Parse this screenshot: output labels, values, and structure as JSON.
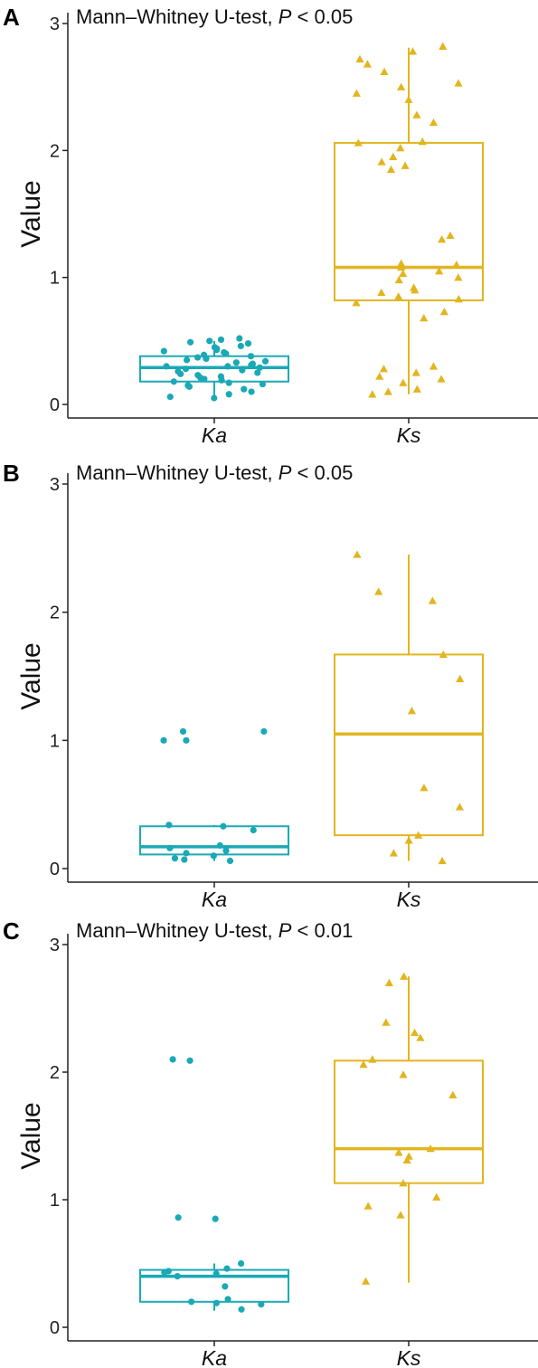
{
  "colors": {
    "Ka": "#1aa9b5",
    "Ks": "#e2b51f",
    "axis": "#222222"
  },
  "chart_data": [
    {
      "panel": "A",
      "type": "box",
      "title_prefix": "Mann–Whitney U-test, ",
      "title_p": "P",
      "title_suffix": " < 0.05",
      "ylabel": "Value",
      "ylim": [
        -0.1,
        3.1
      ],
      "yticks": [
        0,
        1,
        2,
        3
      ],
      "categories": [
        "Ka",
        "Ks"
      ],
      "boxes": [
        {
          "name": "Ka",
          "min": 0.05,
          "q1": 0.18,
          "median": 0.29,
          "q3": 0.38,
          "max": 0.5
        },
        {
          "name": "Ks",
          "min": 0.08,
          "q1": 0.82,
          "median": 1.08,
          "q3": 2.06,
          "max": 2.81
        }
      ],
      "points": [
        [
          0.52,
          0.51,
          0.5,
          0.49,
          0.48,
          0.46,
          0.45,
          0.44,
          0.43,
          0.42,
          0.41,
          0.4,
          0.39,
          0.38,
          0.37,
          0.36,
          0.35,
          0.34,
          0.33,
          0.32,
          0.31,
          0.3,
          0.3,
          0.29,
          0.28,
          0.27,
          0.26,
          0.25,
          0.24,
          0.23,
          0.22,
          0.21,
          0.2,
          0.19,
          0.18,
          0.17,
          0.16,
          0.15,
          0.14,
          0.12,
          0.1,
          0.08,
          0.06,
          0.05
        ],
        [
          2.82,
          2.78,
          2.72,
          2.68,
          2.62,
          2.53,
          2.5,
          2.45,
          2.4,
          2.28,
          2.22,
          2.07,
          2.06,
          2.02,
          1.95,
          1.91,
          1.88,
          1.85,
          1.33,
          1.3,
          1.11,
          1.1,
          1.08,
          1.05,
          1.03,
          1.0,
          0.98,
          0.92,
          0.9,
          0.88,
          0.85,
          0.83,
          0.8,
          0.73,
          0.68,
          0.3,
          0.28,
          0.25,
          0.22,
          0.2,
          0.17,
          0.12,
          0.1,
          0.08
        ]
      ]
    },
    {
      "panel": "B",
      "type": "box",
      "title_prefix": "Mann–Whitney U-test, ",
      "title_p": "P",
      "title_suffix": " < 0.05",
      "ylabel": "Value",
      "ylim": [
        -0.1,
        3.1
      ],
      "yticks": [
        0,
        1,
        2,
        3
      ],
      "categories": [
        "Ka",
        "Ks"
      ],
      "boxes": [
        {
          "name": "Ka",
          "min": 0.06,
          "q1": 0.11,
          "median": 0.17,
          "q3": 0.33,
          "max": 0.34
        },
        {
          "name": "Ks",
          "min": 0.06,
          "q1": 0.26,
          "median": 1.05,
          "q3": 1.67,
          "max": 2.45
        }
      ],
      "points": [
        [
          1.07,
          1.07,
          1.0,
          1.0,
          0.34,
          0.33,
          0.3,
          0.18,
          0.16,
          0.14,
          0.12,
          0.1,
          0.08,
          0.07,
          0.06
        ],
        [
          2.45,
          2.16,
          2.09,
          1.67,
          1.48,
          1.23,
          0.63,
          0.48,
          0.26,
          0.22,
          0.12,
          0.06
        ]
      ]
    },
    {
      "panel": "C",
      "type": "box",
      "title_prefix": "Mann–Whitney U-test, ",
      "title_p": "P",
      "title_suffix": " < 0.01",
      "ylabel": "Value",
      "ylim": [
        -0.1,
        3.1
      ],
      "yticks": [
        0,
        1,
        2,
        3
      ],
      "categories": [
        "Ka",
        "Ks"
      ],
      "boxes": [
        {
          "name": "Ka",
          "min": 0.13,
          "q1": 0.2,
          "median": 0.4,
          "q3": 0.45,
          "max": 0.5
        },
        {
          "name": "Ks",
          "min": 0.35,
          "q1": 1.13,
          "median": 1.4,
          "q3": 2.09,
          "max": 2.75
        }
      ],
      "points": [
        [
          2.1,
          2.09,
          0.86,
          0.85,
          0.5,
          0.46,
          0.44,
          0.43,
          0.42,
          0.4,
          0.32,
          0.22,
          0.2,
          0.19,
          0.18,
          0.14
        ],
        [
          2.75,
          2.7,
          2.39,
          2.31,
          2.27,
          2.1,
          2.06,
          1.98,
          1.82,
          1.4,
          1.37,
          1.34,
          1.31,
          1.13,
          1.02,
          0.95,
          0.88,
          0.36
        ]
      ]
    }
  ]
}
